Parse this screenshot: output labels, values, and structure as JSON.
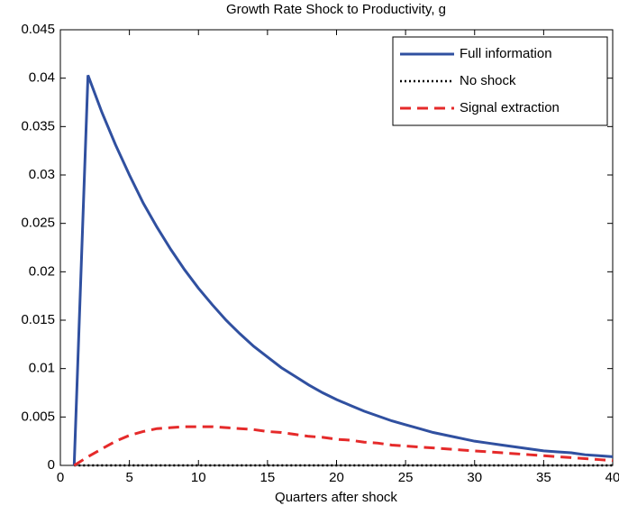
{
  "chart_data": {
    "type": "line",
    "title": "Growth Rate Shock to Productivity, g",
    "xlabel": "Quarters after shock",
    "x": [
      1,
      2,
      3,
      4,
      5,
      6,
      7,
      8,
      9,
      10,
      11,
      12,
      13,
      14,
      15,
      16,
      17,
      18,
      19,
      20,
      21,
      22,
      23,
      24,
      25,
      26,
      27,
      28,
      29,
      30,
      31,
      32,
      33,
      34,
      35,
      36,
      37,
      38,
      39,
      40
    ],
    "series": [
      {
        "name": "Full information",
        "color": "#3050a0",
        "dash": "solid",
        "values": [
          0,
          0.0403,
          0.0365,
          0.0331,
          0.03,
          0.0271,
          0.0246,
          0.0223,
          0.0202,
          0.0183,
          0.0166,
          0.015,
          0.0136,
          0.0123,
          0.0112,
          0.0101,
          0.0092,
          0.0083,
          0.0075,
          0.0068,
          0.0062,
          0.0056,
          0.0051,
          0.0046,
          0.0042,
          0.0038,
          0.0034,
          0.0031,
          0.0028,
          0.0025,
          0.0023,
          0.0021,
          0.0019,
          0.0017,
          0.0015,
          0.0014,
          0.0013,
          0.0011,
          0.001,
          0.0009
        ]
      },
      {
        "name": "No shock",
        "color": "#000000",
        "dash": "dotted",
        "values": [
          0,
          0,
          0,
          0,
          0,
          0,
          0,
          0,
          0,
          0,
          0,
          0,
          0,
          0,
          0,
          0,
          0,
          0,
          0,
          0,
          0,
          0,
          0,
          0,
          0,
          0,
          0,
          0,
          0,
          0,
          0,
          0,
          0,
          0,
          0,
          0,
          0,
          0,
          0,
          0
        ]
      },
      {
        "name": "Signal extraction",
        "color": "#e52a2a",
        "dash": "dashed",
        "values": [
          0,
          0.0009,
          0.0017,
          0.0025,
          0.0031,
          0.0035,
          0.0038,
          0.0039,
          0.004,
          0.004,
          0.004,
          0.0039,
          0.0038,
          0.0037,
          0.0035,
          0.0034,
          0.0032,
          0.003,
          0.0029,
          0.0027,
          0.0026,
          0.0024,
          0.0023,
          0.0021,
          0.002,
          0.0019,
          0.0018,
          0.0017,
          0.0016,
          0.0015,
          0.0014,
          0.0013,
          0.0012,
          0.0011,
          0.001,
          0.0009,
          0.0008,
          0.0007,
          0.0006,
          0.0005
        ]
      }
    ],
    "xlim": [
      0,
      40
    ],
    "xticks": [
      0,
      5,
      10,
      15,
      20,
      25,
      30,
      35,
      40
    ],
    "ylim": [
      0,
      0.045
    ],
    "yticks": [
      0,
      0.005,
      0.01,
      0.015,
      0.02,
      0.025,
      0.03,
      0.035,
      0.04,
      0.045
    ],
    "legend": "top-right"
  }
}
